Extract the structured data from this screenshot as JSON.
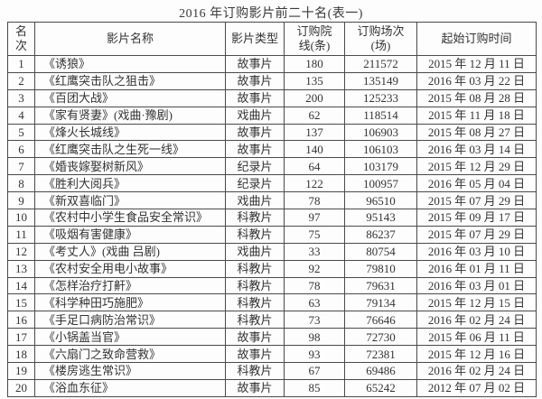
{
  "title": "2016 年订购影片前二十名(表一)",
  "table": {
    "headers": {
      "rank": "名\n次",
      "name": "影片名称",
      "type": "影片类型",
      "lines": "订购院\n线(条)",
      "sessions": "订购场次\n(场)",
      "date": "起始订购时间"
    },
    "rows": [
      {
        "rank": "1",
        "name": "《诱狼》",
        "type": "故事片",
        "lines": "180",
        "sessions": "211572",
        "date": "2015 年 12 月 11 日"
      },
      {
        "rank": "2",
        "name": "《红鹰突击队之狙击》",
        "type": "故事片",
        "lines": "135",
        "sessions": "135149",
        "date": "2016 年 03 月 22 日"
      },
      {
        "rank": "3",
        "name": "《百团大战》",
        "type": "故事片",
        "lines": "200",
        "sessions": "125233",
        "date": "2015 年 08 月 28 日"
      },
      {
        "rank": "4",
        "name": "《家有贤妻》(戏曲·豫剧)",
        "type": "戏曲片",
        "lines": "62",
        "sessions": "118514",
        "date": "2015 年 11 月 18 日"
      },
      {
        "rank": "5",
        "name": "《烽火长城线》",
        "type": "故事片",
        "lines": "137",
        "sessions": "106903",
        "date": "2015 年 08 月 27 日"
      },
      {
        "rank": "6",
        "name": "《红鹰突击队之生死一线》",
        "type": "故事片",
        "lines": "140",
        "sessions": "106103",
        "date": "2016 年 03 月 14 日"
      },
      {
        "rank": "7",
        "name": "《婚丧嫁娶树新风》",
        "type": "纪录片",
        "lines": "64",
        "sessions": "103179",
        "date": "2015 年 12 月 29 日"
      },
      {
        "rank": "8",
        "name": "《胜利大阅兵》",
        "type": "纪录片",
        "lines": "122",
        "sessions": "100957",
        "date": "2016 年 05 月 04 日"
      },
      {
        "rank": "9",
        "name": "《新双喜临门》",
        "type": "戏曲片",
        "lines": "78",
        "sessions": "96510",
        "date": "2015 年 07 月 29 日"
      },
      {
        "rank": "10",
        "name": "《农村中小学生食品安全常识》",
        "type": "科教片",
        "lines": "97",
        "sessions": "95143",
        "date": "2015 年 09 月 17 日"
      },
      {
        "rank": "11",
        "name": "《吸烟有害健康》",
        "type": "科教片",
        "lines": "75",
        "sessions": "86237",
        "date": "2015 年 07 月 29 日"
      },
      {
        "rank": "12",
        "name": "《考丈人》(戏曲 吕剧)",
        "type": "戏曲片",
        "lines": "33",
        "sessions": "80754",
        "date": "2016 年 03 月 10 日"
      },
      {
        "rank": "13",
        "name": "《农村安全用电小故事》",
        "type": "科教片",
        "lines": "92",
        "sessions": "79810",
        "date": "2016 年 01 月 11 日"
      },
      {
        "rank": "14",
        "name": "《怎样治疗打鼾》",
        "type": "科教片",
        "lines": "78",
        "sessions": "79631",
        "date": "2016 年 03 月 01 日"
      },
      {
        "rank": "15",
        "name": "《科学种田巧施肥》",
        "type": "科教片",
        "lines": "63",
        "sessions": "79134",
        "date": "2015 年 12 月 15 日"
      },
      {
        "rank": "16",
        "name": "《手足口病防治常识》",
        "type": "科教片",
        "lines": "73",
        "sessions": "76646",
        "date": "2016 年 02 月 24 日"
      },
      {
        "rank": "17",
        "name": "《小锅盖当官》",
        "type": "故事片",
        "lines": "98",
        "sessions": "72730",
        "date": "2015 年 06 月 11 日"
      },
      {
        "rank": "18",
        "name": "《六扇门之致命营救》",
        "type": "故事片",
        "lines": "93",
        "sessions": "72381",
        "date": "2015 年 12 月 16 日"
      },
      {
        "rank": "19",
        "name": "《楼房逃生常识》",
        "type": "科教片",
        "lines": "67",
        "sessions": "69486",
        "date": "2016 年 02 月 24 日"
      },
      {
        "rank": "20",
        "name": "《浴血东征》",
        "type": "故事片",
        "lines": "85",
        "sessions": "65242",
        "date": "2012 年 07 月 02 日"
      }
    ]
  }
}
